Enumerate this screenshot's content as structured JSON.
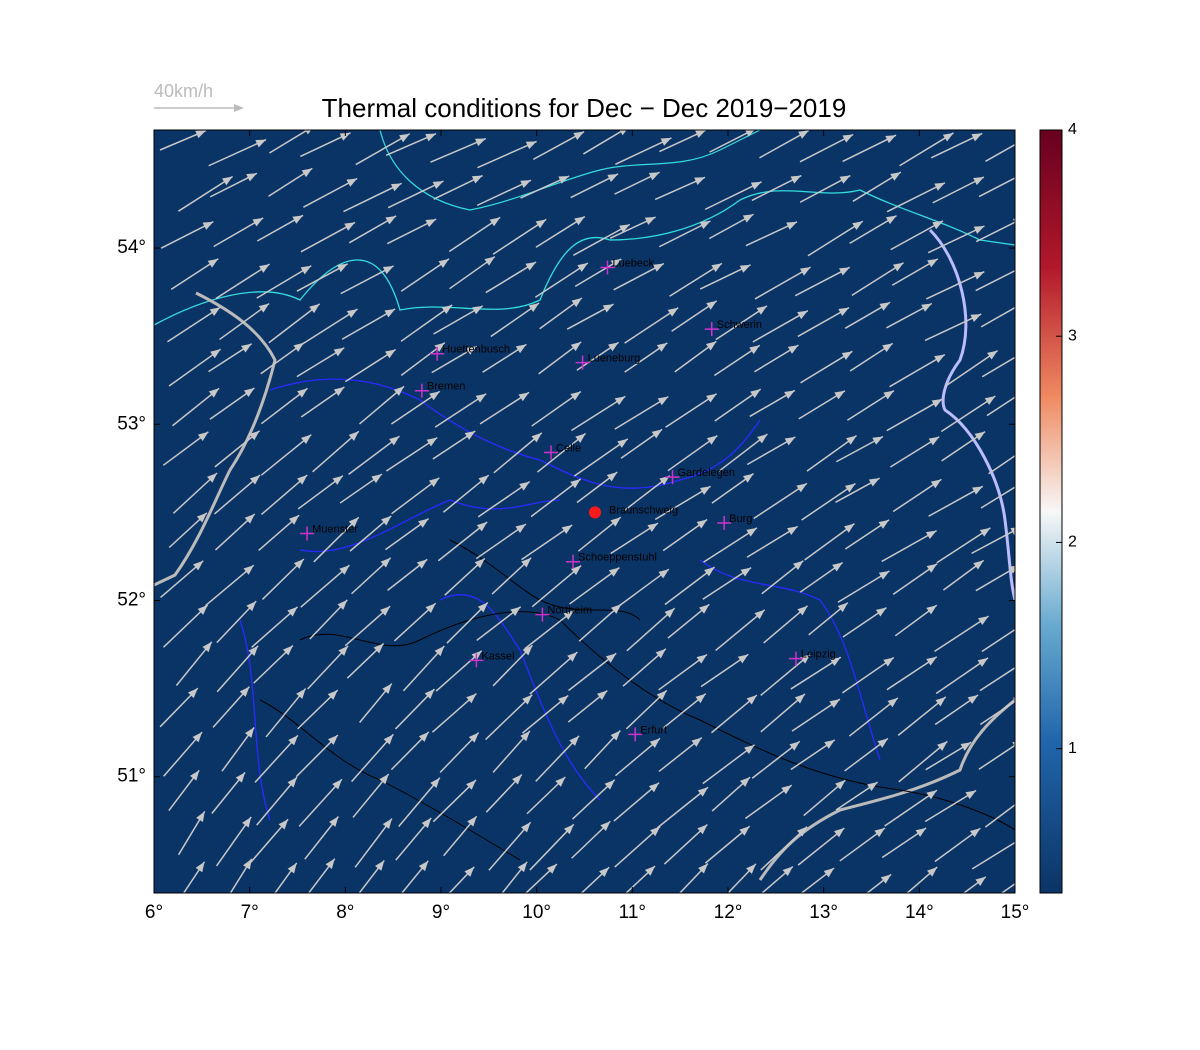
{
  "chart_data": {
    "type": "map",
    "title": "Thermal conditions for Dec − Dec  2019−2019",
    "wind_legend": "40km/h",
    "xlim": [
      6,
      15.0
    ],
    "ylim": [
      50.34,
      54.67
    ],
    "xticks": [
      {
        "value": 6,
        "label": "6°"
      },
      {
        "value": 7,
        "label": "7°"
      },
      {
        "value": 8,
        "label": "8°"
      },
      {
        "value": 9,
        "label": "9°"
      },
      {
        "value": 10,
        "label": "10°"
      },
      {
        "value": 11,
        "label": "11°"
      },
      {
        "value": 12,
        "label": "12°"
      },
      {
        "value": 13,
        "label": "13°"
      },
      {
        "value": 14,
        "label": "14°"
      },
      {
        "value": 15,
        "label": "15°"
      }
    ],
    "yticks": [
      {
        "value": 51,
        "label": "51°"
      },
      {
        "value": 52,
        "label": "52°"
      },
      {
        "value": 53,
        "label": "53°"
      },
      {
        "value": 54,
        "label": "54°"
      }
    ],
    "map_color": "#0b3466",
    "marker_color": "#cc33cc",
    "places": [
      {
        "name": "Luebeck",
        "lon": 10.74,
        "lat": 53.89
      },
      {
        "name": "Schwerin",
        "lon": 11.83,
        "lat": 53.54
      },
      {
        "name": "Huettenbusch",
        "lon": 8.96,
        "lat": 53.4
      },
      {
        "name": "Lueneburg",
        "lon": 10.48,
        "lat": 53.35
      },
      {
        "name": "Bremen",
        "lon": 8.8,
        "lat": 53.19
      },
      {
        "name": "Celle",
        "lon": 10.15,
        "lat": 52.84
      },
      {
        "name": "Gardelegen",
        "lon": 11.42,
        "lat": 52.7
      },
      {
        "name": "Burg",
        "lon": 11.96,
        "lat": 52.44
      },
      {
        "name": "Muenster",
        "lon": 7.6,
        "lat": 52.38
      },
      {
        "name": "Schoeppenstuhl",
        "lon": 10.38,
        "lat": 52.22
      },
      {
        "name": "Northeim",
        "lon": 10.06,
        "lat": 51.92
      },
      {
        "name": "Kassel",
        "lon": 9.37,
        "lat": 51.66
      },
      {
        "name": "Leipzig",
        "lon": 12.71,
        "lat": 51.67
      },
      {
        "name": "Erfurt",
        "lon": 11.03,
        "lat": 51.24
      }
    ],
    "site": {
      "name": "Braunschweig",
      "lon": 10.61,
      "lat": 52.5,
      "color": "#ff1a1a"
    },
    "clim": [
      0.3,
      4
    ],
    "cticks": [
      1,
      2,
      3,
      4
    ]
  }
}
